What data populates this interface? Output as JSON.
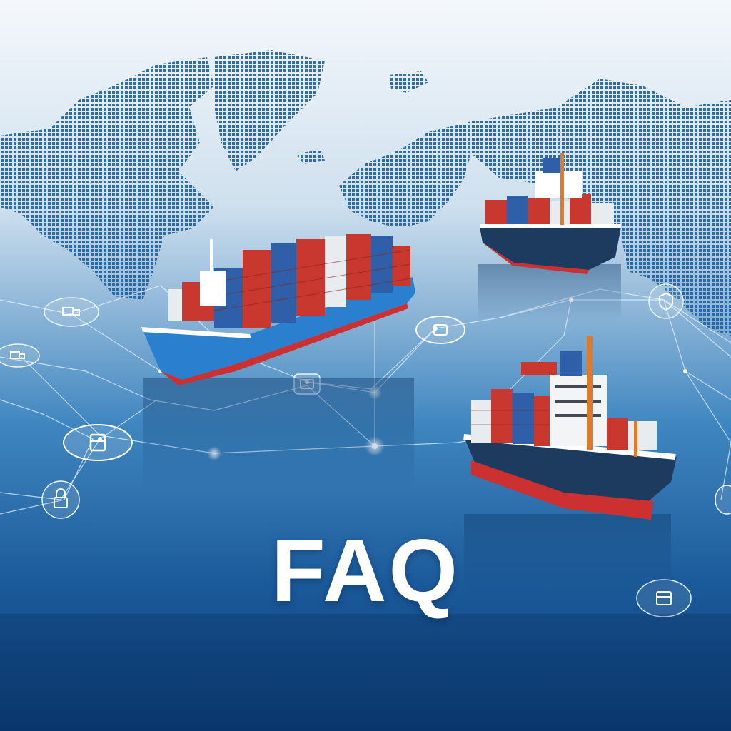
{
  "title": "FAQ",
  "colors": {
    "sky_top": "#f4f8fc",
    "map_dots": "#1d5f9e",
    "sea_mid": "#3f86c0",
    "sea_deep": "#0a3a72",
    "hull_blue": "#2a7fcf",
    "hull_dark": "#1c3b5e",
    "hull_red": "#cc3030",
    "container_red": "#c8382e",
    "container_blue": "#2f5fa8",
    "container_white": "#e8ecef",
    "mast_orange": "#e07a2a"
  },
  "icons": [
    "truck-icon",
    "container-icon",
    "box-icon",
    "shield-icon",
    "lock-icon",
    "location-pin-icon"
  ]
}
